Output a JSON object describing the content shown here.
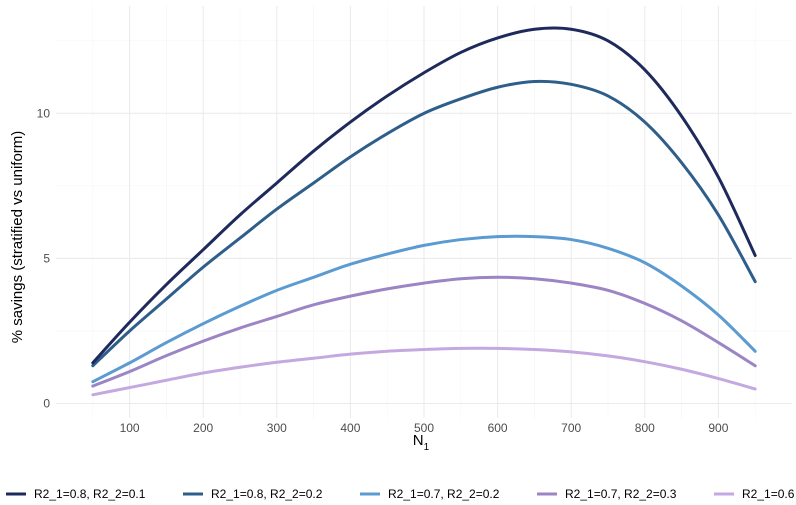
{
  "chart_data": {
    "type": "line",
    "xlabel_main": "N",
    "xlabel_sub": "1",
    "ylabel": "% savings (stratified vs uniform)",
    "xlim": [
      0,
      1000
    ],
    "ylim": [
      -0.5,
      13.7
    ],
    "x_ticks": [
      100,
      200,
      300,
      400,
      500,
      600,
      700,
      800,
      900
    ],
    "y_ticks": [
      0,
      5,
      10
    ],
    "grid": true,
    "legend_position": "bottom",
    "series": [
      {
        "name": "R2_1=0.8, R2_2=0.1",
        "color": "#1f2a5c",
        "x": [
          50,
          100,
          150,
          200,
          250,
          300,
          350,
          400,
          450,
          500,
          550,
          600,
          650,
          700,
          750,
          800,
          850,
          900,
          950
        ],
        "y": [
          1.4,
          2.8,
          4.1,
          5.3,
          6.5,
          7.6,
          8.7,
          9.7,
          10.6,
          11.4,
          12.1,
          12.6,
          12.9,
          12.9,
          12.5,
          11.5,
          9.9,
          7.8,
          5.1
        ]
      },
      {
        "name": "R2_1=0.8, R2_2=0.2",
        "color": "#2e5e8a",
        "x": [
          50,
          100,
          150,
          200,
          250,
          300,
          350,
          400,
          450,
          500,
          550,
          600,
          650,
          700,
          750,
          800,
          850,
          900,
          950
        ],
        "y": [
          1.3,
          2.5,
          3.6,
          4.7,
          5.7,
          6.7,
          7.6,
          8.5,
          9.3,
          10.0,
          10.5,
          10.9,
          11.1,
          11.0,
          10.6,
          9.7,
          8.3,
          6.5,
          4.2
        ]
      },
      {
        "name": "R2_1=0.7, R2_2=0.2",
        "color": "#5b9bd1",
        "x": [
          50,
          100,
          150,
          200,
          250,
          300,
          350,
          400,
          450,
          500,
          550,
          600,
          650,
          700,
          750,
          800,
          850,
          900,
          950
        ],
        "y": [
          0.75,
          1.4,
          2.1,
          2.75,
          3.35,
          3.9,
          4.35,
          4.8,
          5.15,
          5.45,
          5.65,
          5.75,
          5.75,
          5.65,
          5.35,
          4.85,
          4.05,
          3.05,
          1.8
        ]
      },
      {
        "name": "R2_1=0.7, R2_2=0.3",
        "color": "#9b85c4",
        "x": [
          50,
          100,
          150,
          200,
          250,
          300,
          350,
          400,
          450,
          500,
          550,
          600,
          650,
          700,
          750,
          800,
          850,
          900,
          950
        ],
        "y": [
          0.6,
          1.1,
          1.65,
          2.15,
          2.6,
          3.0,
          3.4,
          3.7,
          3.95,
          4.15,
          4.3,
          4.35,
          4.3,
          4.15,
          3.9,
          3.45,
          2.85,
          2.1,
          1.3
        ]
      },
      {
        "name": "R2_1=0.6",
        "color": "#c4a8e0",
        "x": [
          50,
          100,
          150,
          200,
          250,
          300,
          350,
          400,
          450,
          500,
          550,
          600,
          650,
          700,
          750,
          800,
          850,
          900,
          950
        ],
        "y": [
          0.3,
          0.55,
          0.8,
          1.05,
          1.25,
          1.42,
          1.56,
          1.7,
          1.8,
          1.86,
          1.9,
          1.9,
          1.86,
          1.78,
          1.64,
          1.44,
          1.18,
          0.86,
          0.5
        ]
      }
    ]
  }
}
